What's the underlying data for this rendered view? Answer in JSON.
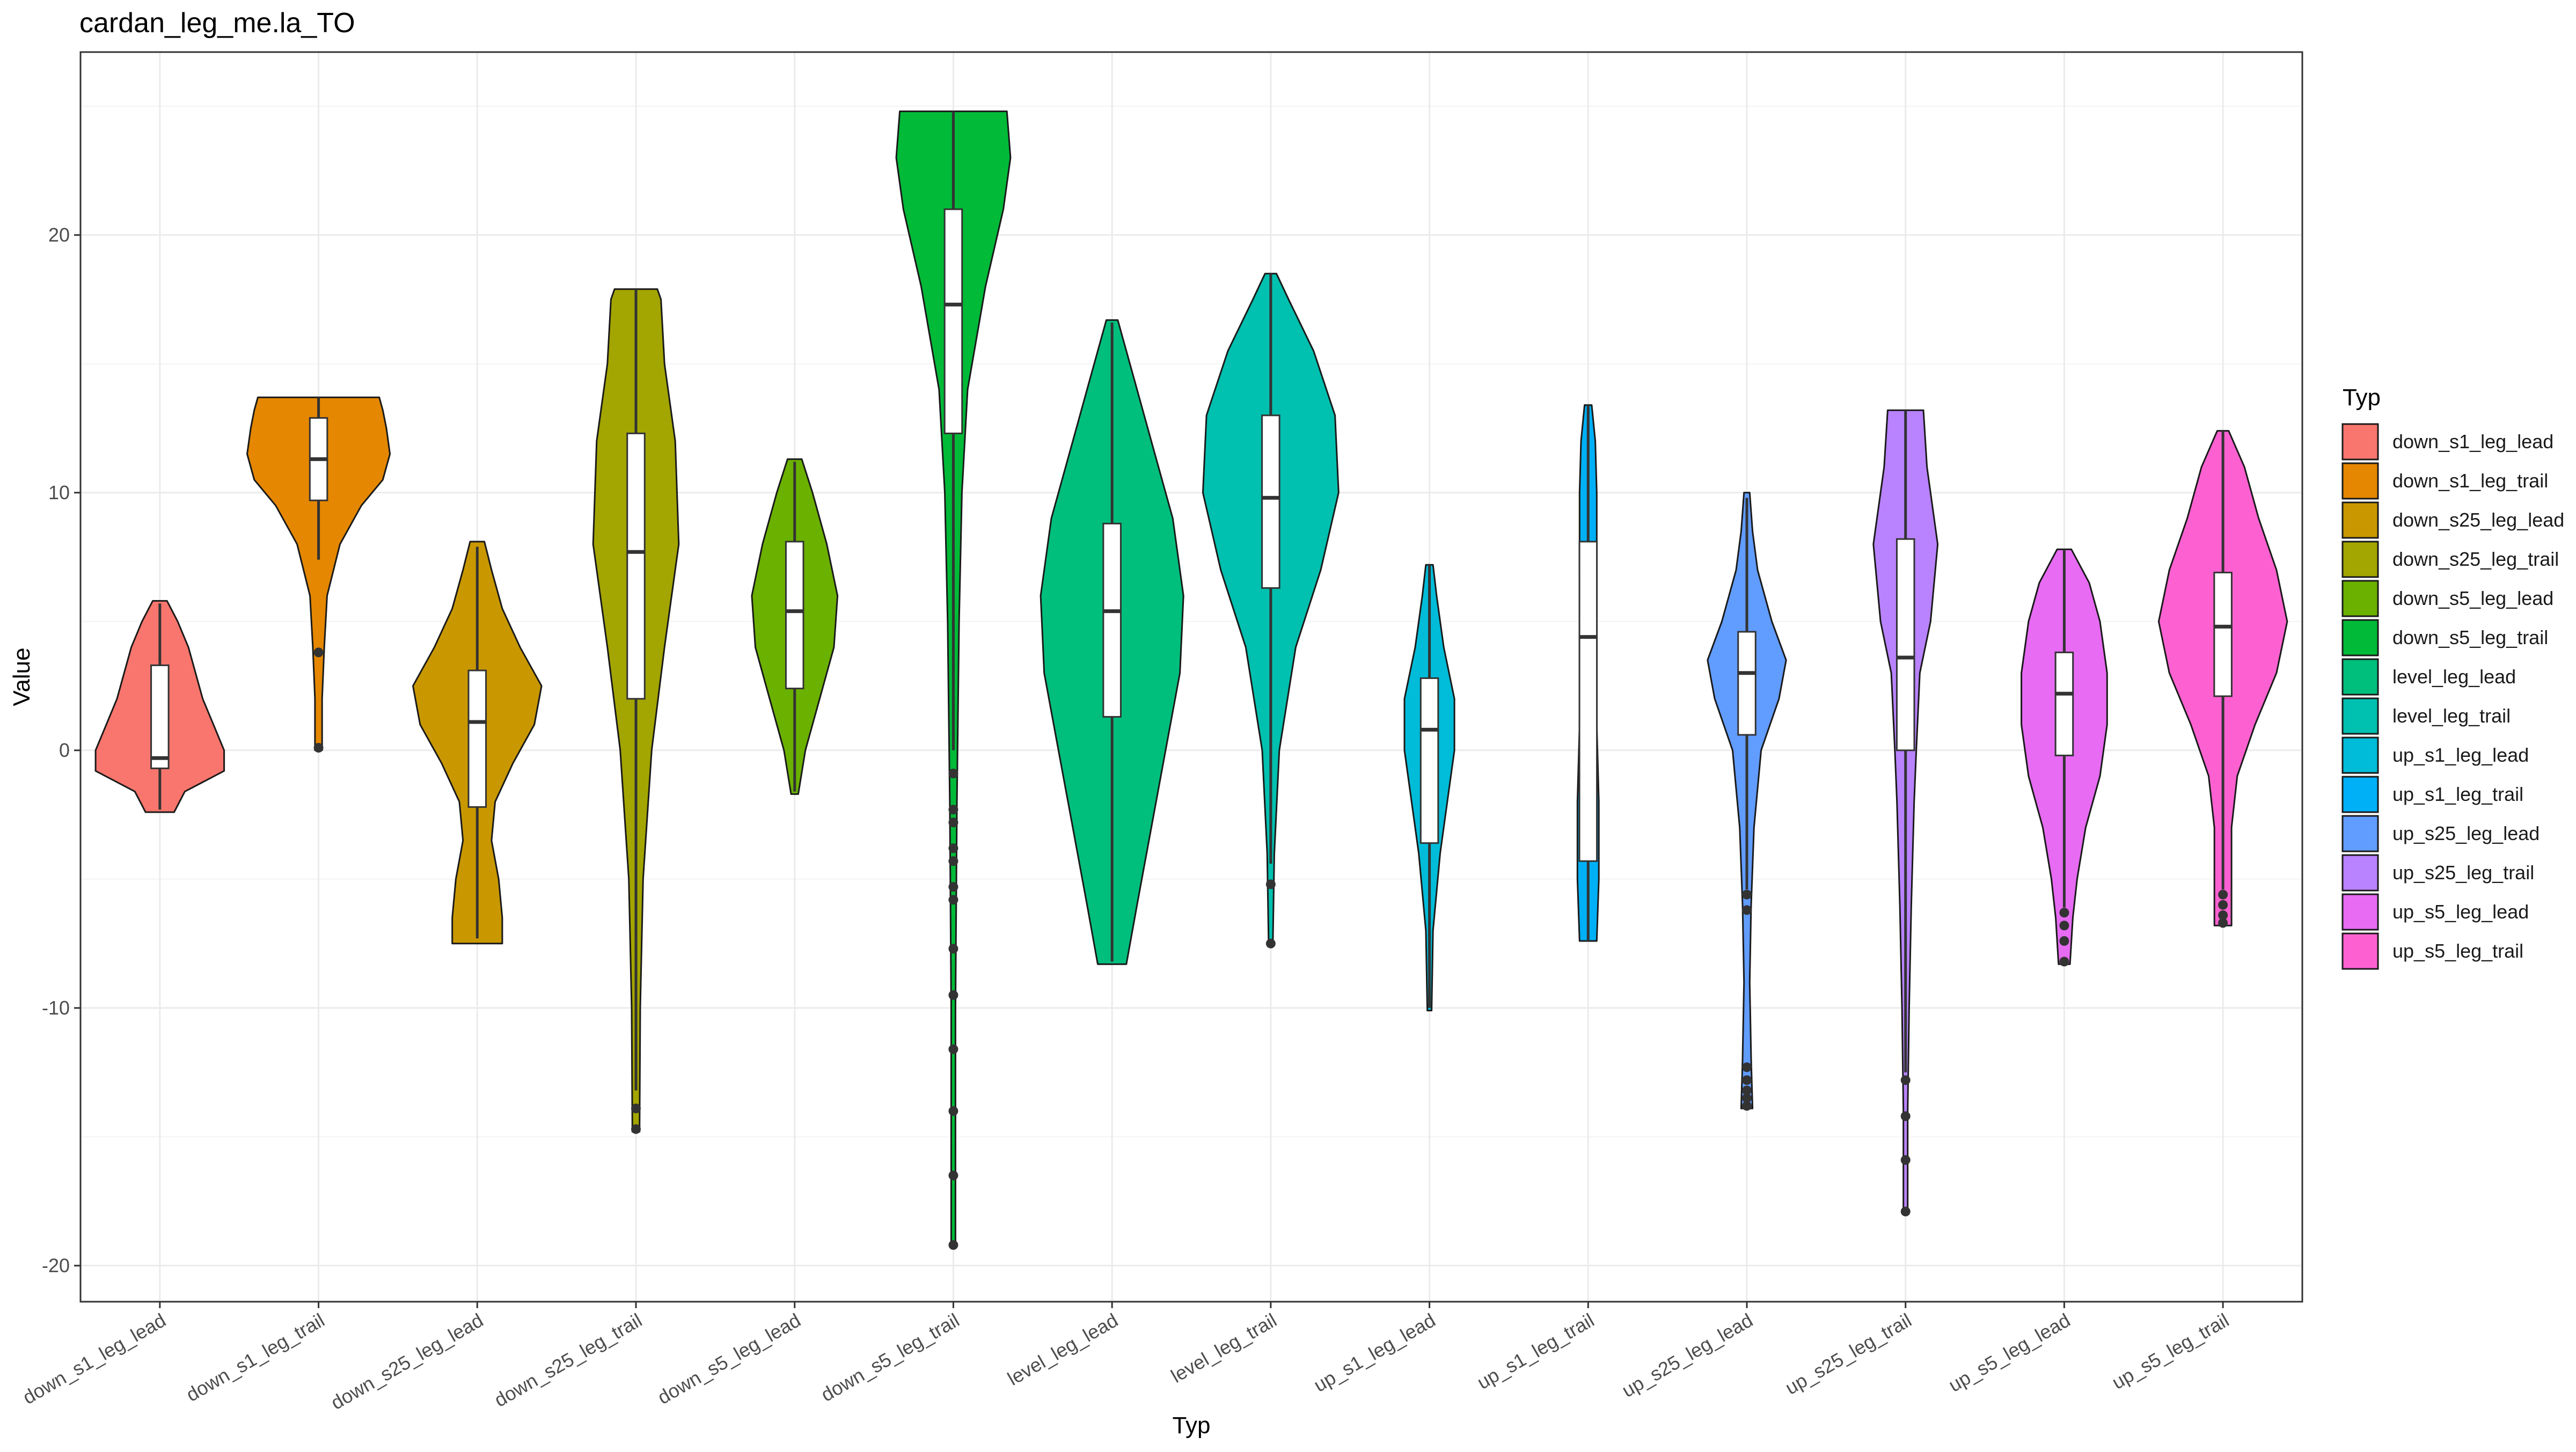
{
  "chart_data": {
    "type": "violin",
    "title": "cardan_leg_me.la_TO",
    "xlabel": "Typ",
    "ylabel": "Value",
    "ylim": [
      -21.4,
      27.1
    ],
    "yticks": [
      -20,
      -10,
      0,
      10,
      20
    ],
    "grid": true,
    "legend": {
      "title": "Typ",
      "position": "right"
    },
    "categories": [
      "down_s1_leg_lead",
      "down_s1_leg_trail",
      "down_s25_leg_lead",
      "down_s25_leg_trail",
      "down_s5_leg_lead",
      "down_s5_leg_trail",
      "level_leg_lead",
      "level_leg_trail",
      "up_s1_leg_lead",
      "up_s1_leg_trail",
      "up_s25_leg_lead",
      "up_s25_leg_trail",
      "up_s5_leg_lead",
      "up_s5_leg_trail"
    ],
    "colors": [
      "#F8766D",
      "#E58700",
      "#C99800",
      "#A3A500",
      "#6BB100",
      "#00BA38",
      "#00BF7D",
      "#00C0AF",
      "#00BCD8",
      "#00B0F6",
      "#619CFF",
      "#B983FF",
      "#E76BF3",
      "#FD61D1"
    ],
    "series": [
      {
        "violin": {
          "min": -2.4,
          "max": 5.8,
          "profile": [
            [
              -2.4,
              0.2
            ],
            [
              -1.6,
              0.35
            ],
            [
              -0.8,
              0.9
            ],
            [
              0,
              0.9
            ],
            [
              1,
              0.75
            ],
            [
              2,
              0.6
            ],
            [
              3,
              0.5
            ],
            [
              4,
              0.4
            ],
            [
              5,
              0.25
            ],
            [
              5.8,
              0.1
            ]
          ]
        },
        "box": {
          "q1": -0.7,
          "median": -0.3,
          "q3": 3.3,
          "whisker_low": -2.3,
          "whisker_high": 5.7
        },
        "outliers": []
      },
      {
        "violin": {
          "min": 0.0,
          "max": 13.7,
          "profile": [
            [
              0,
              0.05
            ],
            [
              2,
              0.05
            ],
            [
              4,
              0.08
            ],
            [
              6,
              0.12
            ],
            [
              8,
              0.3
            ],
            [
              9.5,
              0.6
            ],
            [
              10.5,
              0.9
            ],
            [
              11.5,
              1.0
            ],
            [
              12.5,
              0.95
            ],
            [
              13.2,
              0.9
            ],
            [
              13.7,
              0.85
            ]
          ]
        },
        "box": {
          "q1": 9.7,
          "median": 11.3,
          "q3": 12.9,
          "whisker_low": 7.4,
          "whisker_high": 13.7
        },
        "outliers": [
          3.8,
          0.1
        ]
      },
      {
        "violin": {
          "min": -7.5,
          "max": 8.1,
          "profile": [
            [
              -7.5,
              0.35
            ],
            [
              -6.5,
              0.35
            ],
            [
              -5,
              0.3
            ],
            [
              -3.5,
              0.2
            ],
            [
              -2,
              0.25
            ],
            [
              -0.5,
              0.5
            ],
            [
              1,
              0.8
            ],
            [
              2.5,
              0.9
            ],
            [
              4,
              0.6
            ],
            [
              5.5,
              0.35
            ],
            [
              7,
              0.2
            ],
            [
              8.1,
              0.1
            ]
          ]
        },
        "box": {
          "q1": -2.2,
          "median": 1.1,
          "q3": 3.1,
          "whisker_low": -7.3,
          "whisker_high": 7.9
        },
        "outliers": []
      },
      {
        "violin": {
          "min": -14.8,
          "max": 17.9,
          "profile": [
            [
              -14.8,
              0.05
            ],
            [
              -10,
              0.06
            ],
            [
              -5,
              0.1
            ],
            [
              0,
              0.22
            ],
            [
              4,
              0.4
            ],
            [
              8,
              0.6
            ],
            [
              12,
              0.55
            ],
            [
              15,
              0.4
            ],
            [
              17.5,
              0.35
            ],
            [
              17.9,
              0.3
            ]
          ]
        },
        "box": {
          "q1": 2.0,
          "median": 7.7,
          "q3": 12.3,
          "whisker_low": -13.2,
          "whisker_high": 17.9
        },
        "outliers": [
          -13.9,
          -14.7
        ]
      },
      {
        "violin": {
          "min": -1.7,
          "max": 11.3,
          "profile": [
            [
              -1.7,
              0.05
            ],
            [
              0,
              0.15
            ],
            [
              2,
              0.35
            ],
            [
              4,
              0.55
            ],
            [
              6,
              0.6
            ],
            [
              8,
              0.45
            ],
            [
              10,
              0.25
            ],
            [
              11.3,
              0.1
            ]
          ]
        },
        "box": {
          "q1": 2.4,
          "median": 5.4,
          "q3": 8.1,
          "whisker_low": -1.6,
          "whisker_high": 11.2
        },
        "outliers": []
      },
      {
        "violin": {
          "min": -19.2,
          "max": 24.8,
          "profile": [
            [
              -19.2,
              0.03
            ],
            [
              -10,
              0.03
            ],
            [
              -2,
              0.05
            ],
            [
              5,
              0.08
            ],
            [
              10,
              0.12
            ],
            [
              14,
              0.2
            ],
            [
              18,
              0.45
            ],
            [
              21,
              0.7
            ],
            [
              23,
              0.8
            ],
            [
              24.8,
              0.75
            ]
          ]
        },
        "box": {
          "q1": 12.3,
          "median": 17.3,
          "q3": 21.0,
          "whisker_low": 0.0,
          "whisker_high": 24.8
        },
        "outliers": [
          -0.9,
          -2.3,
          -2.8,
          -3.8,
          -4.3,
          -5.3,
          -5.8,
          -7.7,
          -9.5,
          -11.6,
          -14.0,
          -16.5,
          -19.2
        ]
      },
      {
        "violin": {
          "min": -8.3,
          "max": 16.7,
          "profile": [
            [
              -8.3,
              0.2
            ],
            [
              -6,
              0.35
            ],
            [
              -3,
              0.55
            ],
            [
              0,
              0.75
            ],
            [
              3,
              0.95
            ],
            [
              6,
              1.0
            ],
            [
              9,
              0.85
            ],
            [
              12,
              0.55
            ],
            [
              14.5,
              0.3
            ],
            [
              16.7,
              0.08
            ]
          ]
        },
        "box": {
          "q1": 1.3,
          "median": 5.4,
          "q3": 8.8,
          "whisker_low": -8.2,
          "whisker_high": 16.6
        },
        "outliers": []
      },
      {
        "violin": {
          "min": -7.5,
          "max": 18.5,
          "profile": [
            [
              -7.5,
              0.03
            ],
            [
              -4,
              0.05
            ],
            [
              0,
              0.12
            ],
            [
              4,
              0.35
            ],
            [
              7,
              0.7
            ],
            [
              10,
              0.95
            ],
            [
              13,
              0.9
            ],
            [
              15.5,
              0.6
            ],
            [
              17.5,
              0.25
            ],
            [
              18.5,
              0.08
            ]
          ]
        },
        "box": {
          "q1": 6.3,
          "median": 9.8,
          "q3": 13.0,
          "whisker_low": -4.4,
          "whisker_high": 18.5
        },
        "outliers": [
          -5.2,
          -7.5
        ]
      },
      {
        "violin": {
          "min": -10.1,
          "max": 7.2,
          "profile": [
            [
              -10.1,
              0.03
            ],
            [
              -7,
              0.05
            ],
            [
              -4,
              0.15
            ],
            [
              -2,
              0.25
            ],
            [
              0,
              0.35
            ],
            [
              2,
              0.35
            ],
            [
              4,
              0.2
            ],
            [
              6,
              0.1
            ],
            [
              7.2,
              0.05
            ]
          ]
        },
        "box": {
          "q1": -3.6,
          "median": 0.8,
          "q3": 2.8,
          "whisker_low": -10.0,
          "whisker_high": 7.2
        },
        "outliers": []
      },
      {
        "violin": {
          "min": -7.4,
          "max": 13.4,
          "profile": [
            [
              -7.4,
              0.12
            ],
            [
              -5,
              0.15
            ],
            [
              -2,
              0.15
            ],
            [
              1,
              0.12
            ],
            [
              4,
              0.1
            ],
            [
              7,
              0.12
            ],
            [
              10,
              0.12
            ],
            [
              12,
              0.1
            ],
            [
              13.4,
              0.05
            ]
          ]
        },
        "box": {
          "q1": -4.3,
          "median": 4.4,
          "q3": 8.1,
          "whisker_low": -7.4,
          "whisker_high": 13.4
        },
        "outliers": []
      },
      {
        "violin": {
          "min": -13.9,
          "max": 10.0,
          "profile": [
            [
              -13.9,
              0.08
            ],
            [
              -12,
              0.06
            ],
            [
              -9,
              0.04
            ],
            [
              -6,
              0.06
            ],
            [
              -3,
              0.1
            ],
            [
              0,
              0.2
            ],
            [
              2,
              0.45
            ],
            [
              3.5,
              0.55
            ],
            [
              5,
              0.35
            ],
            [
              7,
              0.15
            ],
            [
              8.5,
              0.08
            ],
            [
              10,
              0.04
            ]
          ]
        },
        "box": {
          "q1": 0.6,
          "median": 3.0,
          "q3": 4.6,
          "whisker_low": -5.4,
          "whisker_high": 9.8
        },
        "outliers": [
          -5.6,
          -6.2,
          -12.3,
          -12.8,
          -13.2,
          -13.5,
          -13.8
        ]
      },
      {
        "violin": {
          "min": -18.0,
          "max": 13.2,
          "profile": [
            [
              -18,
              0.03
            ],
            [
              -14,
              0.03
            ],
            [
              -10,
              0.05
            ],
            [
              -6,
              0.08
            ],
            [
              -2,
              0.12
            ],
            [
              0,
              0.15
            ],
            [
              3,
              0.2
            ],
            [
              5,
              0.35
            ],
            [
              8,
              0.45
            ],
            [
              11,
              0.3
            ],
            [
              13.2,
              0.25
            ]
          ]
        },
        "box": {
          "q1": 0.0,
          "median": 3.6,
          "q3": 8.2,
          "whisker_low": -12.5,
          "whisker_high": 13.2
        },
        "outliers": [
          -12.8,
          -14.2,
          -15.9,
          -17.9
        ]
      },
      {
        "violin": {
          "min": -8.3,
          "max": 7.8,
          "profile": [
            [
              -8.3,
              0.08
            ],
            [
              -6.5,
              0.12
            ],
            [
              -5,
              0.18
            ],
            [
              -3,
              0.3
            ],
            [
              -1,
              0.5
            ],
            [
              1,
              0.6
            ],
            [
              3,
              0.6
            ],
            [
              5,
              0.5
            ],
            [
              6.5,
              0.35
            ],
            [
              7.8,
              0.1
            ]
          ]
        },
        "box": {
          "q1": -0.2,
          "median": 2.2,
          "q3": 3.8,
          "whisker_low": -6.1,
          "whisker_high": 7.8
        },
        "outliers": [
          -6.3,
          -6.8,
          -7.4,
          -8.2
        ]
      },
      {
        "violin": {
          "min": -6.8,
          "max": 12.4,
          "profile": [
            [
              -6.8,
              0.12
            ],
            [
              -5,
              0.12
            ],
            [
              -3,
              0.12
            ],
            [
              -1,
              0.2
            ],
            [
              1,
              0.45
            ],
            [
              3,
              0.75
            ],
            [
              5,
              0.9
            ],
            [
              7,
              0.75
            ],
            [
              9,
              0.5
            ],
            [
              11,
              0.3
            ],
            [
              12.4,
              0.08
            ]
          ]
        },
        "box": {
          "q1": 2.1,
          "median": 4.8,
          "q3": 6.9,
          "whisker_low": -5.4,
          "whisker_high": 12.4
        },
        "outliers": [
          -5.6,
          -6.0,
          -6.4,
          -6.7
        ]
      }
    ]
  }
}
